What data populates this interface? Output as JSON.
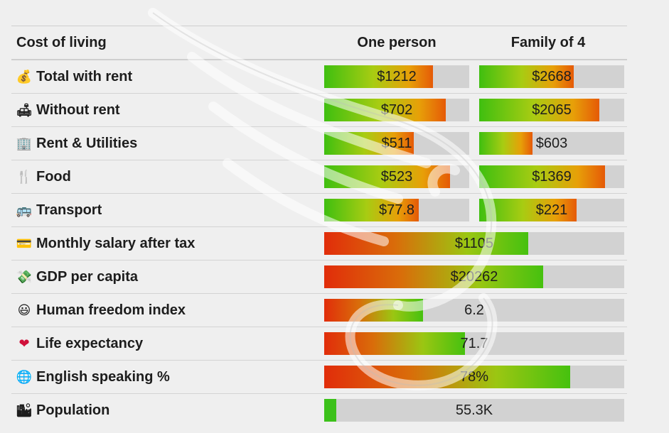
{
  "header": {
    "title": "Cost of living",
    "col_one": "One person",
    "col_family": "Family of 4"
  },
  "colors": {
    "fill_green": "#3cc11a",
    "fill_red": "#e12d0a",
    "track": "#d2d2d2"
  },
  "rows": [
    {
      "icon": "money-bag-icon",
      "glyph": "💰",
      "label": "Total with rent",
      "one": "$1212",
      "family": "$2668",
      "one_frac": 0.75,
      "family_frac": 0.65
    },
    {
      "icon": "sofa-icon",
      "glyph": "🛋",
      "label": "Without rent",
      "one": "$702",
      "family": "$2065",
      "one_frac": 0.84,
      "family_frac": 0.83
    },
    {
      "icon": "building-icon",
      "glyph": "🏢",
      "label": "Rent & Utilities",
      "one": "$511",
      "family": "$603",
      "one_frac": 0.62,
      "family_frac": 0.37
    },
    {
      "icon": "fork-knife-icon",
      "glyph": "🍴",
      "label": "Food",
      "one": "$523",
      "family": "$1369",
      "one_frac": 0.87,
      "family_frac": 0.87
    },
    {
      "icon": "bus-icon",
      "glyph": "🚌",
      "label": "Transport",
      "one": "$77.8",
      "family": "$221",
      "one_frac": 0.65,
      "family_frac": 0.67
    }
  ],
  "wide_rows": [
    {
      "icon": "credit-card-icon",
      "glyph": "💳",
      "label": "Monthly salary after tax",
      "value": "$1105",
      "frac": 0.68,
      "style": "rev"
    },
    {
      "icon": "money-wings-icon",
      "glyph": "💸",
      "label": "GDP per capita",
      "value": "$20262",
      "frac": 0.73,
      "style": "rev"
    },
    {
      "icon": "smiley-icon",
      "glyph": "😃",
      "label": "Human freedom index",
      "value": "6.2",
      "frac": 0.33,
      "style": "rev"
    },
    {
      "icon": "heart-icon",
      "glyph": "❤",
      "label": "Life expectancy",
      "value": "71.7",
      "frac": 0.47,
      "style": "rev"
    },
    {
      "icon": "globe-icon",
      "glyph": "🌐",
      "label": "English speaking %",
      "value": "78%",
      "frac": 0.82,
      "style": "rev"
    },
    {
      "icon": "cityscape-icon",
      "glyph": "🏙",
      "label": "Population",
      "value": "55.3K",
      "frac": 0.04,
      "style": "green"
    }
  ]
}
